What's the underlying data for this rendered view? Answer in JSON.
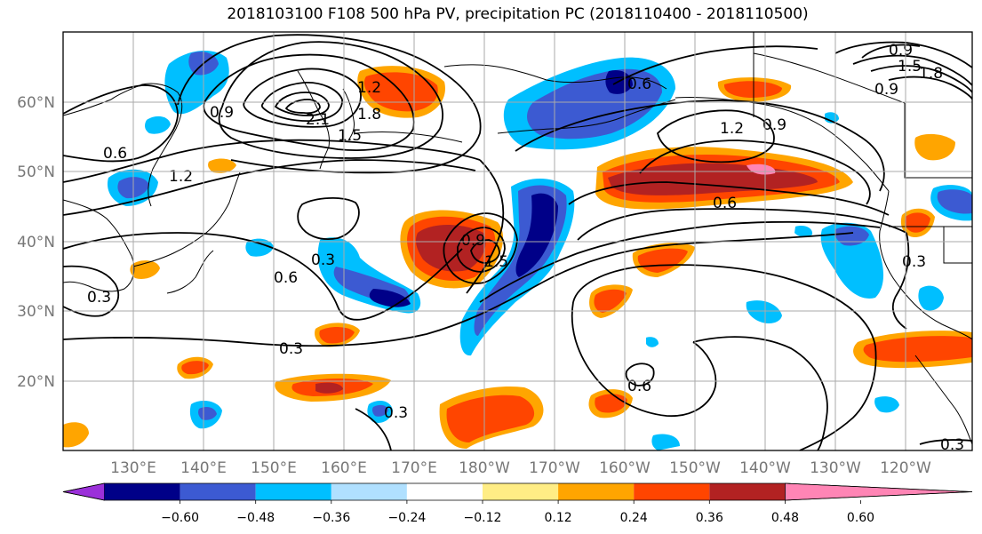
{
  "title": "2018103100 F108 500 hPa PV, precipitation PC (2018110400 - 2018110500)",
  "lat_labels": [
    "60°N",
    "50°N",
    "40°N",
    "30°N",
    "20°N"
  ],
  "lon_labels": [
    "130°E",
    "140°E",
    "150°E",
    "160°E",
    "170°E",
    "180°W",
    "170°W",
    "160°W",
    "150°W",
    "140°W",
    "130°W",
    "120°W"
  ],
  "colorbar": {
    "ticks": [
      "−0.60",
      "−0.48",
      "−0.36",
      "−0.24",
      "−0.12",
      "0.12",
      "0.24",
      "0.36",
      "0.48",
      "0.60"
    ],
    "colors": [
      "#9b30d9",
      "#000088",
      "#3c5ad2",
      "#00bfff",
      "#b0e0ff",
      "#ffffff",
      "#ffed85",
      "#ffa500",
      "#ff4500",
      "#b22222",
      "#ff85b5"
    ]
  },
  "contour_labels": [
    "0.9",
    "1.2",
    "1.8",
    "2.1",
    "1.5",
    "0.6",
    "1.2",
    "0.9",
    "0.6",
    "0.3",
    "0.6",
    "0.3",
    "0.9",
    "1.5",
    "0.6",
    "0.3",
    "0.3",
    "1.2",
    "0.6",
    "0.9",
    "1.5",
    "1.8",
    "0.9",
    "0.3",
    "0.3"
  ],
  "colors": {
    "grid": "#aaaaaa",
    "coast": "#000000",
    "contour": "#000000"
  }
}
